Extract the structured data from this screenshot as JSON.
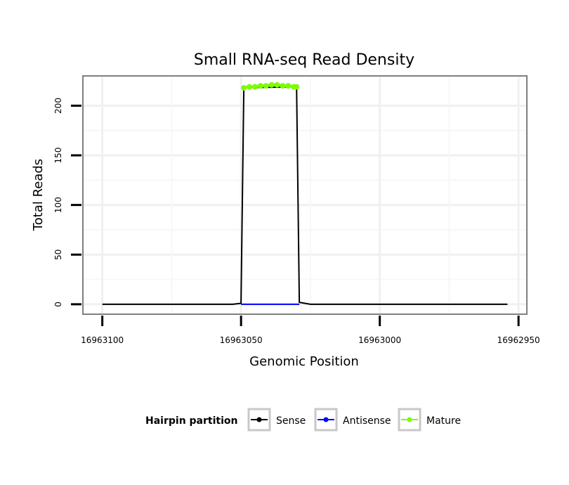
{
  "chart_data": {
    "type": "line",
    "title": "Small RNA-seq Read Density",
    "xlabel": "Genomic Position",
    "ylabel": "Total Reads",
    "xlim": [
      16963107,
      16962947
    ],
    "ylim": [
      -10,
      230
    ],
    "x_ticks": [
      16963100,
      16963050,
      16963000,
      16962950
    ],
    "x_tick_labels": [
      "16963100",
      "16963050",
      "16963000",
      "16962950"
    ],
    "y_ticks": [
      0,
      50,
      100,
      150,
      200
    ],
    "y_tick_labels": [
      "0",
      "50",
      "100",
      "150",
      "200"
    ],
    "grid": true,
    "legend": {
      "title": "Hairpin partition",
      "position": "bottom",
      "entries": [
        {
          "label": "Sense",
          "color": "#000000"
        },
        {
          "label": "Antisense",
          "color": "#0000ff"
        },
        {
          "label": "Mature",
          "color": "#7cfc00"
        }
      ]
    },
    "series": [
      {
        "name": "Sense",
        "color": "#000000",
        "points": [
          [
            16963100,
            0
          ],
          [
            16963053,
            0
          ],
          [
            16963050,
            1
          ],
          [
            16963049,
            218
          ],
          [
            16963030,
            219
          ],
          [
            16963029,
            2
          ],
          [
            16963027,
            1
          ],
          [
            16963025,
            0
          ],
          [
            16962954,
            0
          ]
        ]
      },
      {
        "name": "Antisense",
        "color": "#0000ff",
        "points": [
          [
            16963050,
            0
          ],
          [
            16963029,
            0
          ]
        ]
      },
      {
        "name": "Mature",
        "color": "#7cfc00",
        "points": [
          [
            16963049,
            218
          ],
          [
            16963047,
            219
          ],
          [
            16963045,
            219
          ],
          [
            16963043,
            220
          ],
          [
            16963041,
            220
          ],
          [
            16963039,
            221
          ],
          [
            16963037,
            221
          ],
          [
            16963035,
            220
          ],
          [
            16963033,
            220
          ],
          [
            16963031,
            219
          ],
          [
            16963030,
            219
          ]
        ]
      }
    ]
  }
}
